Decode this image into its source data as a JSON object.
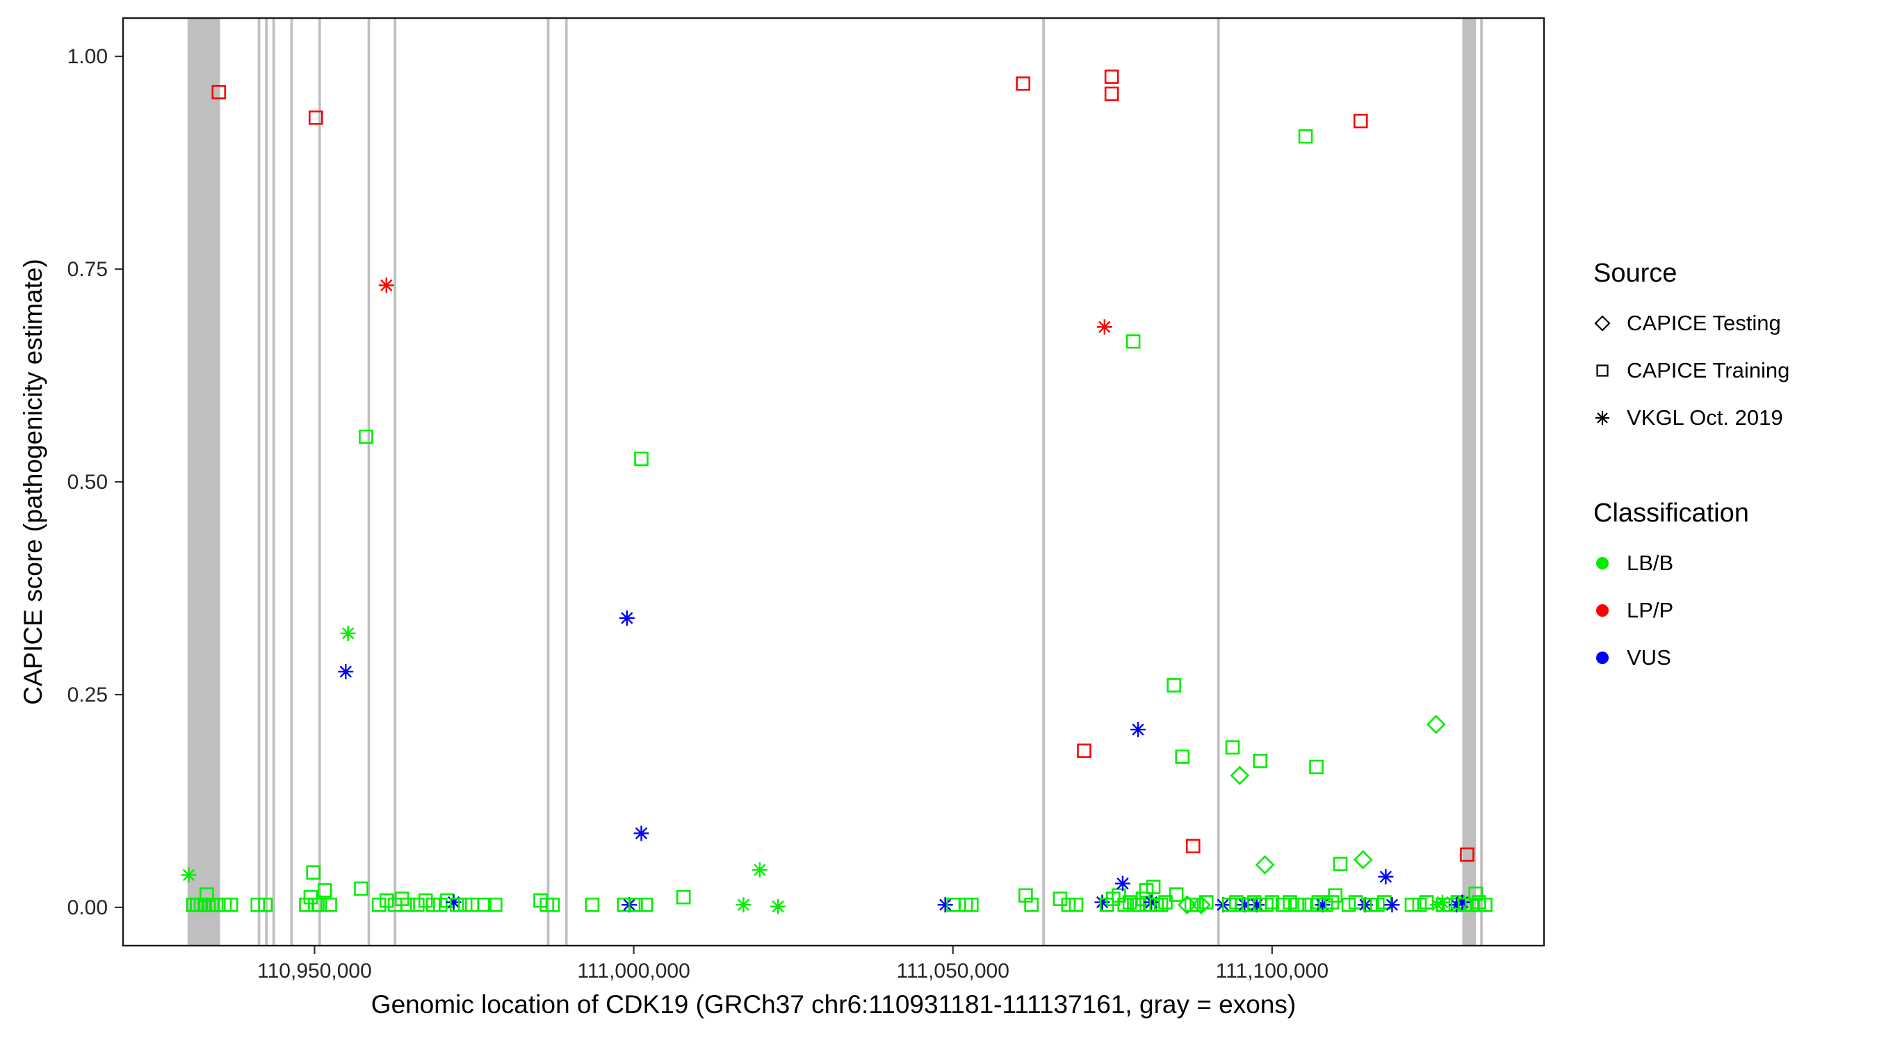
{
  "legend": {
    "source_title": "Source",
    "source_items": [
      {
        "label": "CAPICE Testing",
        "shape": "diamond"
      },
      {
        "label": "CAPICE Training",
        "shape": "square"
      },
      {
        "label": "VKGL Oct. 2019",
        "shape": "asterisk"
      }
    ],
    "classification_title": "Classification",
    "classification_items": [
      {
        "label": "LB/B",
        "class_key": "LB/B"
      },
      {
        "label": "LP/P",
        "class_key": "LP/P"
      },
      {
        "label": "VUS",
        "class_key": "VUS"
      }
    ],
    "position": "right"
  },
  "chart_data": {
    "type": "scatter",
    "title": "",
    "xlabel": "Genomic location of CDK19 (GRCh37 chr6:110931181-111137161, gray = exons)",
    "ylabel": "CAPICE score (pathogenicity estimate)",
    "grid": false,
    "x_domain": [
      110920000,
      111142600
    ],
    "y_domain": [
      -0.045,
      1.045
    ],
    "x_ticks": [
      {
        "value": 110950000,
        "label": "110,950,000"
      },
      {
        "value": 111000000,
        "label": "111,000,000"
      },
      {
        "value": 111050000,
        "label": "111,050,000"
      },
      {
        "value": 111100000,
        "label": "111,100,000"
      }
    ],
    "y_ticks": [
      {
        "value": 0.0,
        "label": "0.00"
      },
      {
        "value": 0.25,
        "label": "0.25"
      },
      {
        "value": 0.5,
        "label": "0.50"
      },
      {
        "value": 0.75,
        "label": "0.75"
      },
      {
        "value": 1.0,
        "label": "1.00"
      }
    ],
    "exon_color": "#bfbfbf",
    "exons": [
      [
        110930100,
        110935200
      ],
      [
        110941100,
        110941500
      ],
      [
        110942250,
        110942650
      ],
      [
        110943400,
        110943800
      ],
      [
        110946200,
        110946600
      ],
      [
        110950600,
        110951000
      ],
      [
        110958300,
        110958700
      ],
      [
        110962400,
        110962800
      ],
      [
        110986400,
        110986800
      ],
      [
        110989250,
        110989650
      ],
      [
        111064000,
        111064400
      ],
      [
        111091400,
        111091800
      ],
      [
        111129800,
        111131950
      ],
      [
        111132600,
        111133000
      ]
    ],
    "sources": {
      "testing": {
        "label": "CAPICE Testing",
        "shape": "diamond"
      },
      "training": {
        "label": "CAPICE Training",
        "shape": "square"
      },
      "vkgl": {
        "label": "VKGL Oct. 2019",
        "shape": "asterisk"
      }
    },
    "classes": {
      "LB/B": "#00EE00",
      "LP/P": "#FF0000",
      "VUS": "#0000FF"
    },
    "points": [
      [
        110930300,
        0.038,
        "vkgl",
        "LB/B"
      ],
      [
        110931000,
        0.003,
        "training",
        "LB/B"
      ],
      [
        110931600,
        0.003,
        "training",
        "LB/B"
      ],
      [
        110932200,
        0.003,
        "training",
        "LB/B"
      ],
      [
        110932800,
        0.003,
        "training",
        "LB/B"
      ],
      [
        110933100,
        0.015,
        "training",
        "LB/B"
      ],
      [
        110933400,
        0.003,
        "training",
        "LB/B"
      ],
      [
        110934000,
        0.003,
        "training",
        "LB/B"
      ],
      [
        110934600,
        0.003,
        "training",
        "LB/B"
      ],
      [
        110935000,
        0.958,
        "training",
        "LP/P"
      ],
      [
        110935900,
        0.003,
        "training",
        "LB/B"
      ],
      [
        110936900,
        0.003,
        "training",
        "LB/B"
      ],
      [
        110941100,
        0.003,
        "training",
        "LB/B"
      ],
      [
        110942300,
        0.003,
        "training",
        "LB/B"
      ],
      [
        110948700,
        0.003,
        "training",
        "LB/B"
      ],
      [
        110949400,
        0.012,
        "training",
        "LB/B"
      ],
      [
        110949810,
        0.041,
        "training",
        "LB/B"
      ],
      [
        110950100,
        0.003,
        "training",
        "LB/B"
      ],
      [
        110950200,
        0.928,
        "training",
        "LP/P"
      ],
      [
        110950800,
        0.003,
        "training",
        "LB/B"
      ],
      [
        110951600,
        0.02,
        "training",
        "LB/B"
      ],
      [
        110952400,
        0.003,
        "training",
        "LB/B"
      ],
      [
        110954880,
        0.277,
        "vkgl",
        "VUS"
      ],
      [
        110955250,
        0.322,
        "vkgl",
        "LB/B"
      ],
      [
        110957300,
        0.022,
        "training",
        "LB/B"
      ],
      [
        110958060,
        0.553,
        "training",
        "LB/B"
      ],
      [
        110960100,
        0.003,
        "training",
        "LB/B"
      ],
      [
        110961250,
        0.731,
        "vkgl",
        "LP/P"
      ],
      [
        110961300,
        0.008,
        "training",
        "LB/B"
      ],
      [
        110962600,
        0.003,
        "training",
        "LB/B"
      ],
      [
        110963700,
        0.01,
        "training",
        "LB/B"
      ],
      [
        110964600,
        0.003,
        "training",
        "LB/B"
      ],
      [
        110966100,
        0.003,
        "training",
        "LB/B"
      ],
      [
        110967400,
        0.008,
        "training",
        "LB/B"
      ],
      [
        110968600,
        0.003,
        "training",
        "LB/B"
      ],
      [
        110969700,
        0.003,
        "training",
        "LB/B"
      ],
      [
        110970800,
        0.008,
        "training",
        "LB/B"
      ],
      [
        110971800,
        0.006,
        "vkgl",
        "VUS"
      ],
      [
        110972300,
        0.003,
        "training",
        "LB/B"
      ],
      [
        110973600,
        0.003,
        "training",
        "LB/B"
      ],
      [
        110974700,
        0.003,
        "training",
        "LB/B"
      ],
      [
        110976600,
        0.003,
        "training",
        "LB/B"
      ],
      [
        110978300,
        0.003,
        "training",
        "LB/B"
      ],
      [
        110985400,
        0.008,
        "training",
        "LB/B"
      ],
      [
        110986400,
        0.003,
        "training",
        "LB/B"
      ],
      [
        110987300,
        0.003,
        "training",
        "LB/B"
      ],
      [
        110993500,
        0.003,
        "training",
        "LB/B"
      ],
      [
        110998500,
        0.003,
        "training",
        "LB/B"
      ],
      [
        110998940,
        0.34,
        "vkgl",
        "VUS"
      ],
      [
        110999300,
        0.003,
        "vkgl",
        "VUS"
      ],
      [
        111000300,
        0.003,
        "training",
        "LB/B"
      ],
      [
        111001190,
        0.527,
        "training",
        "LB/B"
      ],
      [
        111001190,
        0.087,
        "vkgl",
        "VUS"
      ],
      [
        111001900,
        0.003,
        "training",
        "LB/B"
      ],
      [
        111007800,
        0.012,
        "training",
        "LB/B"
      ],
      [
        111017200,
        0.003,
        "vkgl",
        "LB/B"
      ],
      [
        111019750,
        0.044,
        "vkgl",
        "LB/B"
      ],
      [
        111022600,
        0.001,
        "vkgl",
        "LB/B"
      ],
      [
        111048800,
        0.003,
        "vkgl",
        "VUS"
      ],
      [
        111050100,
        0.003,
        "training",
        "LB/B"
      ],
      [
        111052000,
        0.003,
        "training",
        "LB/B"
      ],
      [
        111052900,
        0.003,
        "training",
        "LB/B"
      ],
      [
        111061000,
        0.968,
        "training",
        "LP/P"
      ],
      [
        111061400,
        0.014,
        "training",
        "LB/B"
      ],
      [
        111062300,
        0.003,
        "training",
        "LB/B"
      ],
      [
        111066800,
        0.01,
        "training",
        "LB/B"
      ],
      [
        111068100,
        0.003,
        "training",
        "LB/B"
      ],
      [
        111069300,
        0.003,
        "training",
        "LB/B"
      ],
      [
        111070560,
        0.184,
        "training",
        "LP/P"
      ],
      [
        111073400,
        0.006,
        "vkgl",
        "VUS"
      ],
      [
        111073750,
        0.682,
        "vkgl",
        "LP/P"
      ],
      [
        111074100,
        0.003,
        "training",
        "LB/B"
      ],
      [
        111074880,
        0.976,
        "training",
        "LP/P"
      ],
      [
        111074880,
        0.956,
        "training",
        "LP/P"
      ],
      [
        111075100,
        0.01,
        "training",
        "LB/B"
      ],
      [
        111076000,
        0.014,
        "training",
        "LB/B"
      ],
      [
        111076600,
        0.028,
        "vkgl",
        "VUS"
      ],
      [
        111076900,
        0.003,
        "training",
        "LB/B"
      ],
      [
        111077700,
        0.006,
        "training",
        "LB/B"
      ],
      [
        111078250,
        0.665,
        "training",
        "LB/B"
      ],
      [
        111078400,
        0.003,
        "training",
        "LB/B"
      ],
      [
        111079000,
        0.209,
        "vkgl",
        "VUS"
      ],
      [
        111079200,
        0.003,
        "training",
        "LB/B"
      ],
      [
        111079800,
        0.01,
        "training",
        "LB/B"
      ],
      [
        111080300,
        0.02,
        "training",
        "LB/B"
      ],
      [
        111080900,
        0.003,
        "training",
        "LB/B"
      ],
      [
        111081100,
        0.006,
        "vkgl",
        "VUS"
      ],
      [
        111081400,
        0.024,
        "training",
        "LB/B"
      ],
      [
        111081900,
        0.003,
        "training",
        "LB/B"
      ],
      [
        111082600,
        0.003,
        "training",
        "LB/B"
      ],
      [
        111083300,
        0.006,
        "training",
        "LB/B"
      ],
      [
        111084630,
        0.261,
        "training",
        "LB/B"
      ],
      [
        111085000,
        0.015,
        "training",
        "LB/B"
      ],
      [
        111085940,
        0.177,
        "training",
        "LB/B"
      ],
      [
        111086700,
        0.003,
        "testing",
        "LB/B"
      ],
      [
        111087400,
        0.003,
        "training",
        "LB/B"
      ],
      [
        111087630,
        0.072,
        "training",
        "LP/P"
      ],
      [
        111088200,
        0.003,
        "training",
        "LB/B"
      ],
      [
        111088900,
        0.003,
        "testing",
        "LB/B"
      ],
      [
        111089700,
        0.006,
        "training",
        "LB/B"
      ],
      [
        111092300,
        0.003,
        "vkgl",
        "VUS"
      ],
      [
        111093300,
        0.003,
        "training",
        "LB/B"
      ],
      [
        111093810,
        0.188,
        "training",
        "LB/B"
      ],
      [
        111094400,
        0.006,
        "training",
        "LB/B"
      ],
      [
        111094940,
        0.155,
        "testing",
        "LB/B"
      ],
      [
        111095300,
        0.003,
        "training",
        "LB/B"
      ],
      [
        111095700,
        0.003,
        "vkgl",
        "VUS"
      ],
      [
        111096300,
        0.003,
        "training",
        "LB/B"
      ],
      [
        111097200,
        0.006,
        "training",
        "LB/B"
      ],
      [
        111097600,
        0.003,
        "vkgl",
        "VUS"
      ],
      [
        111098100,
        0.003,
        "training",
        "LB/B"
      ],
      [
        111098130,
        0.172,
        "training",
        "LB/B"
      ],
      [
        111098880,
        0.05,
        "testing",
        "LB/B"
      ],
      [
        111099100,
        0.003,
        "training",
        "LB/B"
      ],
      [
        111100000,
        0.006,
        "training",
        "LB/B"
      ],
      [
        111101700,
        0.003,
        "training",
        "LB/B"
      ],
      [
        111102800,
        0.006,
        "training",
        "LB/B"
      ],
      [
        111103900,
        0.003,
        "training",
        "LB/B"
      ],
      [
        111105100,
        0.003,
        "training",
        "LB/B"
      ],
      [
        111105250,
        0.906,
        "training",
        "LB/B"
      ],
      [
        111106200,
        0.003,
        "training",
        "LB/B"
      ],
      [
        111106940,
        0.165,
        "training",
        "LB/B"
      ],
      [
        111107300,
        0.006,
        "training",
        "LB/B"
      ],
      [
        111107900,
        0.003,
        "vkgl",
        "VUS"
      ],
      [
        111108400,
        0.003,
        "training",
        "LB/B"
      ],
      [
        111109400,
        0.006,
        "training",
        "LB/B"
      ],
      [
        111109900,
        0.014,
        "training",
        "LB/B"
      ],
      [
        111110690,
        0.051,
        "training",
        "LB/B"
      ],
      [
        111112000,
        0.003,
        "training",
        "LB/B"
      ],
      [
        111113100,
        0.006,
        "training",
        "LB/B"
      ],
      [
        111113880,
        0.924,
        "training",
        "LP/P"
      ],
      [
        111114250,
        0.056,
        "testing",
        "LB/B"
      ],
      [
        111114600,
        0.003,
        "vkgl",
        "VUS"
      ],
      [
        111115400,
        0.003,
        "training",
        "LB/B"
      ],
      [
        111116500,
        0.003,
        "training",
        "LB/B"
      ],
      [
        111117600,
        0.006,
        "training",
        "LB/B"
      ],
      [
        111117810,
        0.036,
        "vkgl",
        "VUS"
      ],
      [
        111118800,
        0.003,
        "vkgl",
        "VUS"
      ],
      [
        111121900,
        0.003,
        "training",
        "LB/B"
      ],
      [
        111123100,
        0.003,
        "training",
        "LB/B"
      ],
      [
        111124200,
        0.006,
        "training",
        "LB/B"
      ],
      [
        111125690,
        0.215,
        "testing",
        "LB/B"
      ],
      [
        111125900,
        0.003,
        "vkgl",
        "LB/B"
      ],
      [
        111126700,
        0.006,
        "vkgl",
        "LB/B"
      ],
      [
        111126800,
        0.003,
        "training",
        "LB/B"
      ],
      [
        111127900,
        0.003,
        "training",
        "LB/B"
      ],
      [
        111128900,
        0.003,
        "vkgl",
        "VUS"
      ],
      [
        111129100,
        0.006,
        "training",
        "LB/B"
      ],
      [
        111129800,
        0.006,
        "vkgl",
        "VUS"
      ],
      [
        111130200,
        0.003,
        "training",
        "LB/B"
      ],
      [
        111130560,
        0.062,
        "training",
        "LP/P"
      ],
      [
        111131300,
        0.003,
        "training",
        "LB/B"
      ],
      [
        111131900,
        0.016,
        "training",
        "LB/B"
      ],
      [
        111132400,
        0.006,
        "training",
        "LB/B"
      ],
      [
        111133400,
        0.003,
        "training",
        "LB/B"
      ]
    ]
  }
}
